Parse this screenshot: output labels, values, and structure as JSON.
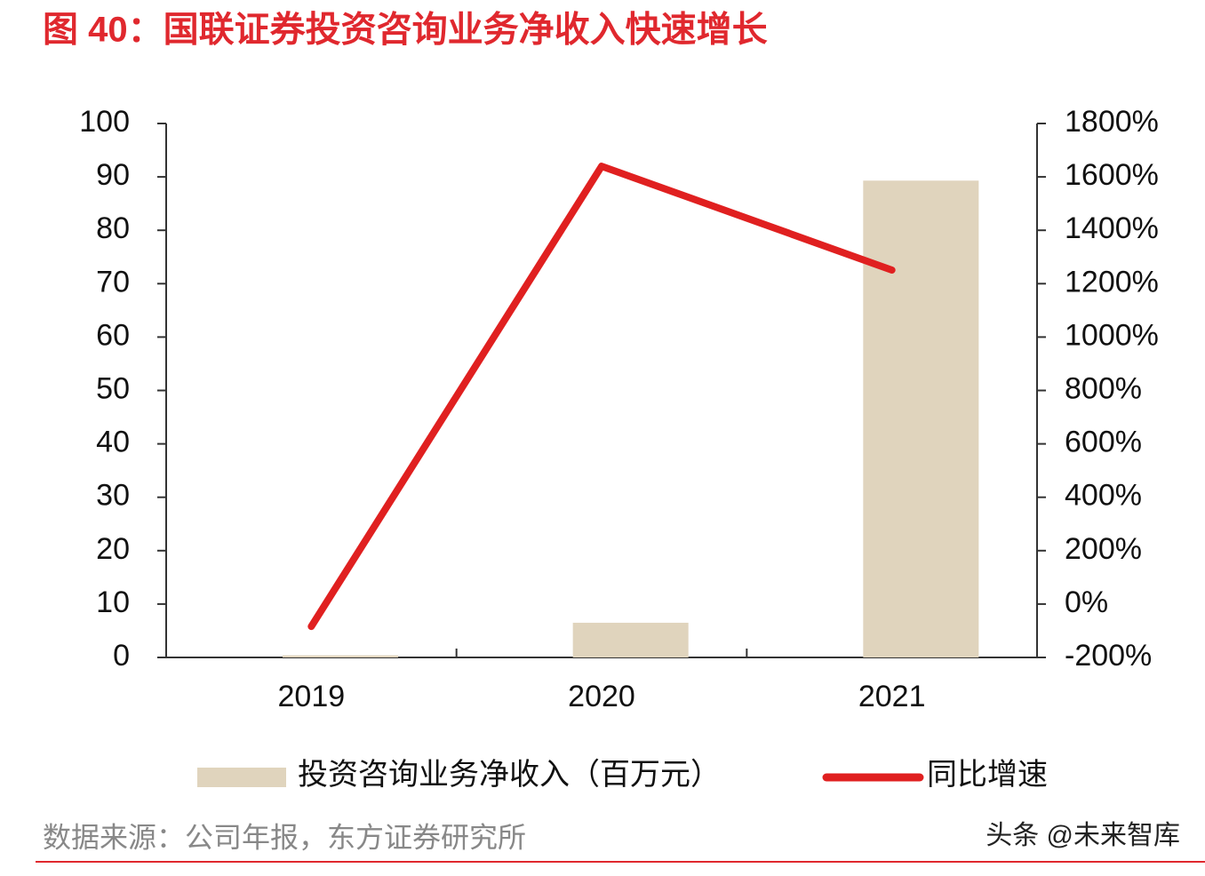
{
  "title": "图 40：国联证券投资咨询业务净收入快速增长",
  "source": "数据来源：公司年报，东方证券研究所",
  "watermark": "头条 @未来智库",
  "chart_data": {
    "type": "bar-line",
    "categories": [
      "2019",
      "2020",
      "2021"
    ],
    "series": [
      {
        "name": "投资咨询业务净收入（百万元）",
        "type": "bar",
        "color": "#e0d4bd",
        "values": [
          0.4,
          6.5,
          89.3
        ]
      },
      {
        "name": "同比增速",
        "type": "line",
        "axis": "y2",
        "color": "#e02020",
        "values": [
          -84,
          1640,
          1251
        ]
      }
    ],
    "ylim": [
      0,
      100
    ],
    "yticks": [
      0,
      10,
      20,
      30,
      40,
      50,
      60,
      70,
      80,
      90,
      100
    ],
    "y2lim": [
      -200,
      1800
    ],
    "y2ticks": [
      {
        "value": -200,
        "label": "-200%"
      },
      {
        "value": 0,
        "label": "0%"
      },
      {
        "value": 200,
        "label": "200%"
      },
      {
        "value": 400,
        "label": "400%"
      },
      {
        "value": 600,
        "label": "600%"
      },
      {
        "value": 800,
        "label": "800%"
      },
      {
        "value": 1000,
        "label": "1000%"
      },
      {
        "value": 1200,
        "label": "1200%"
      },
      {
        "value": 1400,
        "label": "1400%"
      },
      {
        "value": 1600,
        "label": "1600%"
      },
      {
        "value": 1800,
        "label": "1800%"
      }
    ]
  }
}
